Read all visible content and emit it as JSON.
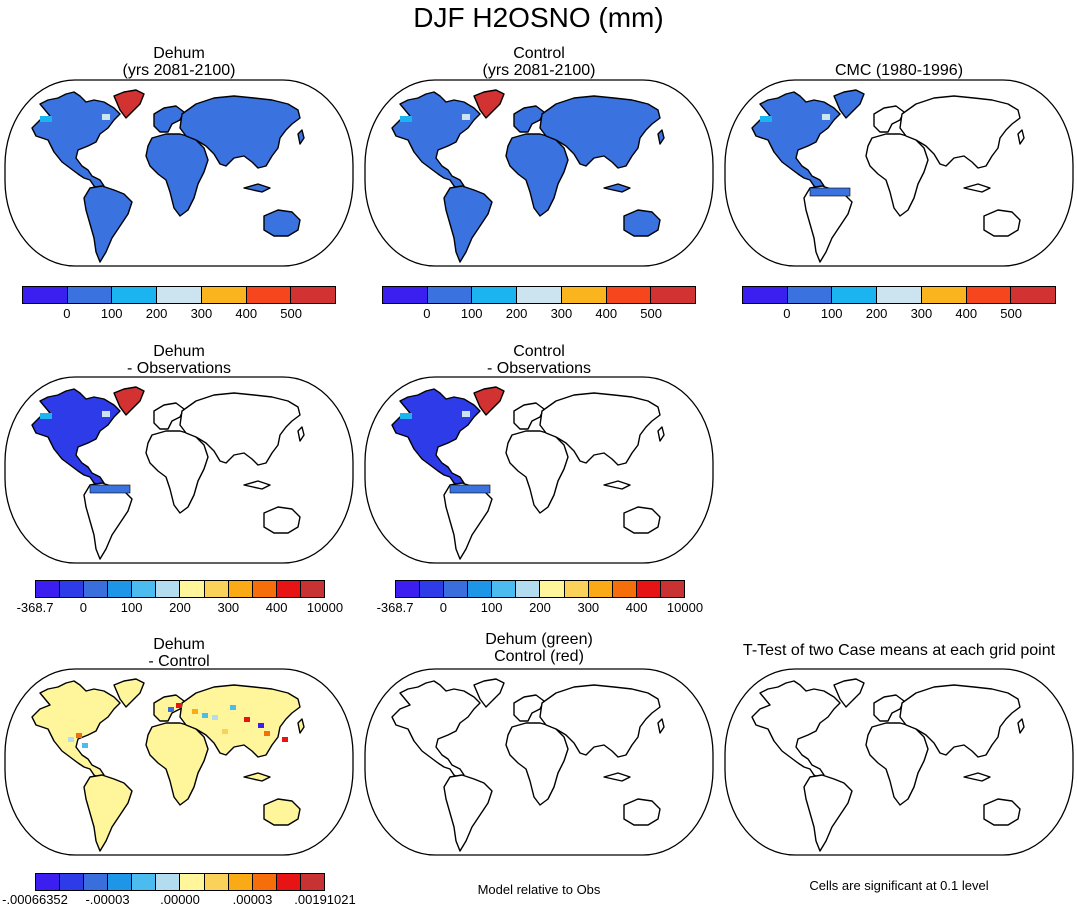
{
  "title": "DJF H2OSNO (mm)",
  "panels": {
    "p1": {
      "line1": "Dehum",
      "line2": "(yrs 2081-2100)"
    },
    "p2": {
      "line1": "Control",
      "line2": "(yrs 2081-2100)"
    },
    "p3": {
      "line1": "CMC (1980-1996)"
    },
    "p4": {
      "line1": "Dehum",
      "line2": "- Observations"
    },
    "p5": {
      "line1": "Control",
      "line2": "- Observations"
    },
    "p7": {
      "line1": "Dehum",
      "line2": "- Control"
    },
    "p8": {
      "line1": "Dehum (green)",
      "line2": "Control (red)"
    },
    "p9": {
      "line1": "T-Test of two Case means at each grid point"
    }
  },
  "colorbars": {
    "abs": {
      "colors": [
        "#3b1ef0",
        "#3a72e0",
        "#1cb4f0",
        "#cce4f0",
        "#fab41e",
        "#f5461e",
        "#d23232"
      ],
      "labels": [
        "0",
        "100",
        "200",
        "300",
        "400",
        "500"
      ]
    },
    "diff": {
      "colors": [
        "#3c1ef0",
        "#2d3ce8",
        "#3a6edc",
        "#1e96e8",
        "#4cbcf0",
        "#b4dcf0",
        "#fff59a",
        "#fad25a",
        "#faaa14",
        "#f56e0a",
        "#e61414",
        "#c83232"
      ],
      "labels": [
        "-368.7",
        "0",
        "100",
        "200",
        "300",
        "400",
        "10000"
      ]
    },
    "dc": {
      "colors": [
        "#3c1ef0",
        "#2d3ce8",
        "#3a6edc",
        "#1e96e8",
        "#4cbcf0",
        "#b4dcf0",
        "#fff59a",
        "#fad25a",
        "#faaa14",
        "#f56e0a",
        "#e61414",
        "#c83232"
      ],
      "labels": [
        "-.00066352",
        "-.00003",
        ".00000",
        ".00003",
        ".00191021"
      ]
    }
  },
  "footnotes": {
    "p8": "Model relative to Obs",
    "p9": "Cells are significant at 0.1 level"
  }
}
